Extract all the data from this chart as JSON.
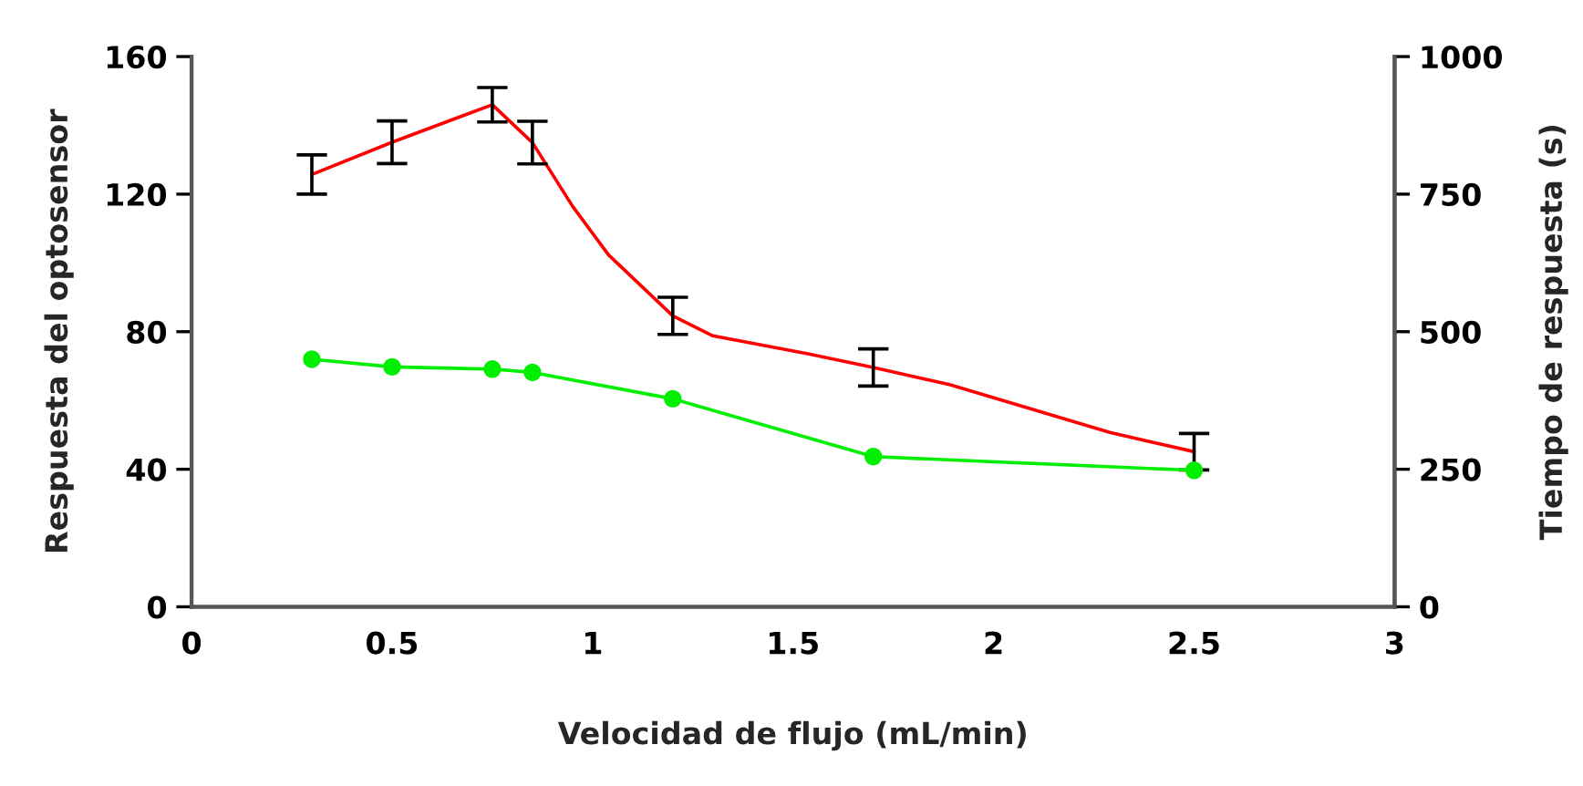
{
  "chart_data": {
    "type": "line",
    "xlabel": "Velocidad de flujo (mL/min)",
    "ylabel": "Respuesta del optosensor",
    "y2label": "Tiempo de respuesta (s)",
    "xlim": [
      0,
      3
    ],
    "xticks": [
      0,
      0.5,
      1,
      1.5,
      2,
      2.5,
      3
    ],
    "ylim": [
      0,
      160
    ],
    "yticks": [
      0,
      40,
      80,
      120,
      160
    ],
    "y2lim": [
      0,
      1000
    ],
    "y2ticks": [
      0,
      250,
      500,
      750,
      1000
    ],
    "grid": false,
    "legend": false,
    "series": [
      {
        "color": "#ff0000",
        "marker": "none",
        "x": [
          0.3,
          0.5,
          0.75,
          0.85,
          0.95,
          1.04,
          1.2,
          1.3,
          1.54,
          1.7,
          1.89,
          2.29,
          2.5
        ],
        "values": [
          125.7,
          135.1,
          146,
          135,
          116.5,
          102.3,
          84.6,
          78.8,
          73.5,
          69.6,
          64.6,
          50.7,
          45.1
        ],
        "errors": [
          5.7,
          6.2,
          5,
          6.2,
          null,
          null,
          5.4,
          null,
          null,
          5.4,
          null,
          null,
          5.3
        ]
      },
      {
        "color": "#00ee00",
        "marker": "circle",
        "axis": "y2",
        "x": [
          0.3,
          0.5,
          0.75,
          0.85,
          1.2,
          1.7,
          2.5
        ],
        "values": [
          450,
          436,
          432,
          426,
          378,
          273,
          248
        ]
      }
    ]
  }
}
